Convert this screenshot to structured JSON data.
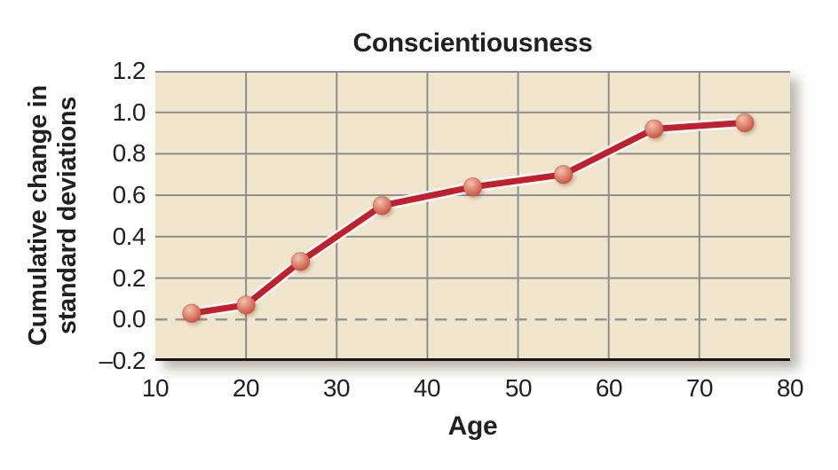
{
  "chart_data": {
    "type": "line",
    "title": "Conscientiousness",
    "xlabel": "Age",
    "ylabel_lines": [
      "Cumulative change in",
      "standard deviations"
    ],
    "x": [
      14,
      20,
      26,
      35,
      45,
      55,
      65,
      75
    ],
    "y": [
      0.03,
      0.07,
      0.28,
      0.55,
      0.64,
      0.7,
      0.92,
      0.95
    ],
    "xlim": [
      10,
      80
    ],
    "ylim": [
      -0.2,
      1.2
    ],
    "x_ticks": [
      10,
      20,
      30,
      40,
      50,
      60,
      70,
      80
    ],
    "x_tick_labels": [
      "10",
      "20",
      "30",
      "40",
      "50",
      "60",
      "70",
      "80"
    ],
    "y_ticks": [
      1.2,
      1.0,
      0.8,
      0.6,
      0.4,
      0.2,
      0.0,
      -0.2
    ],
    "y_tick_labels": [
      "1.2",
      "1.0",
      "0.8",
      "0.6",
      "0.4",
      "0.2",
      "0.0",
      "–0.2"
    ],
    "grid": true,
    "legend": "none",
    "zero_line_style": "dashed",
    "colors": {
      "plot_bg": "#f0e5cd",
      "grid": "#8d8d8d",
      "zero_dash": "#94928c",
      "axis": "#161314",
      "line": "#c41e2c",
      "line_casing": "#ffffff",
      "marker_highlight": "#f2c3ae",
      "marker_mid": "#e08d79",
      "marker_deep": "#d2604b",
      "marker_edge": "#b84836",
      "text": "#231f20"
    }
  }
}
